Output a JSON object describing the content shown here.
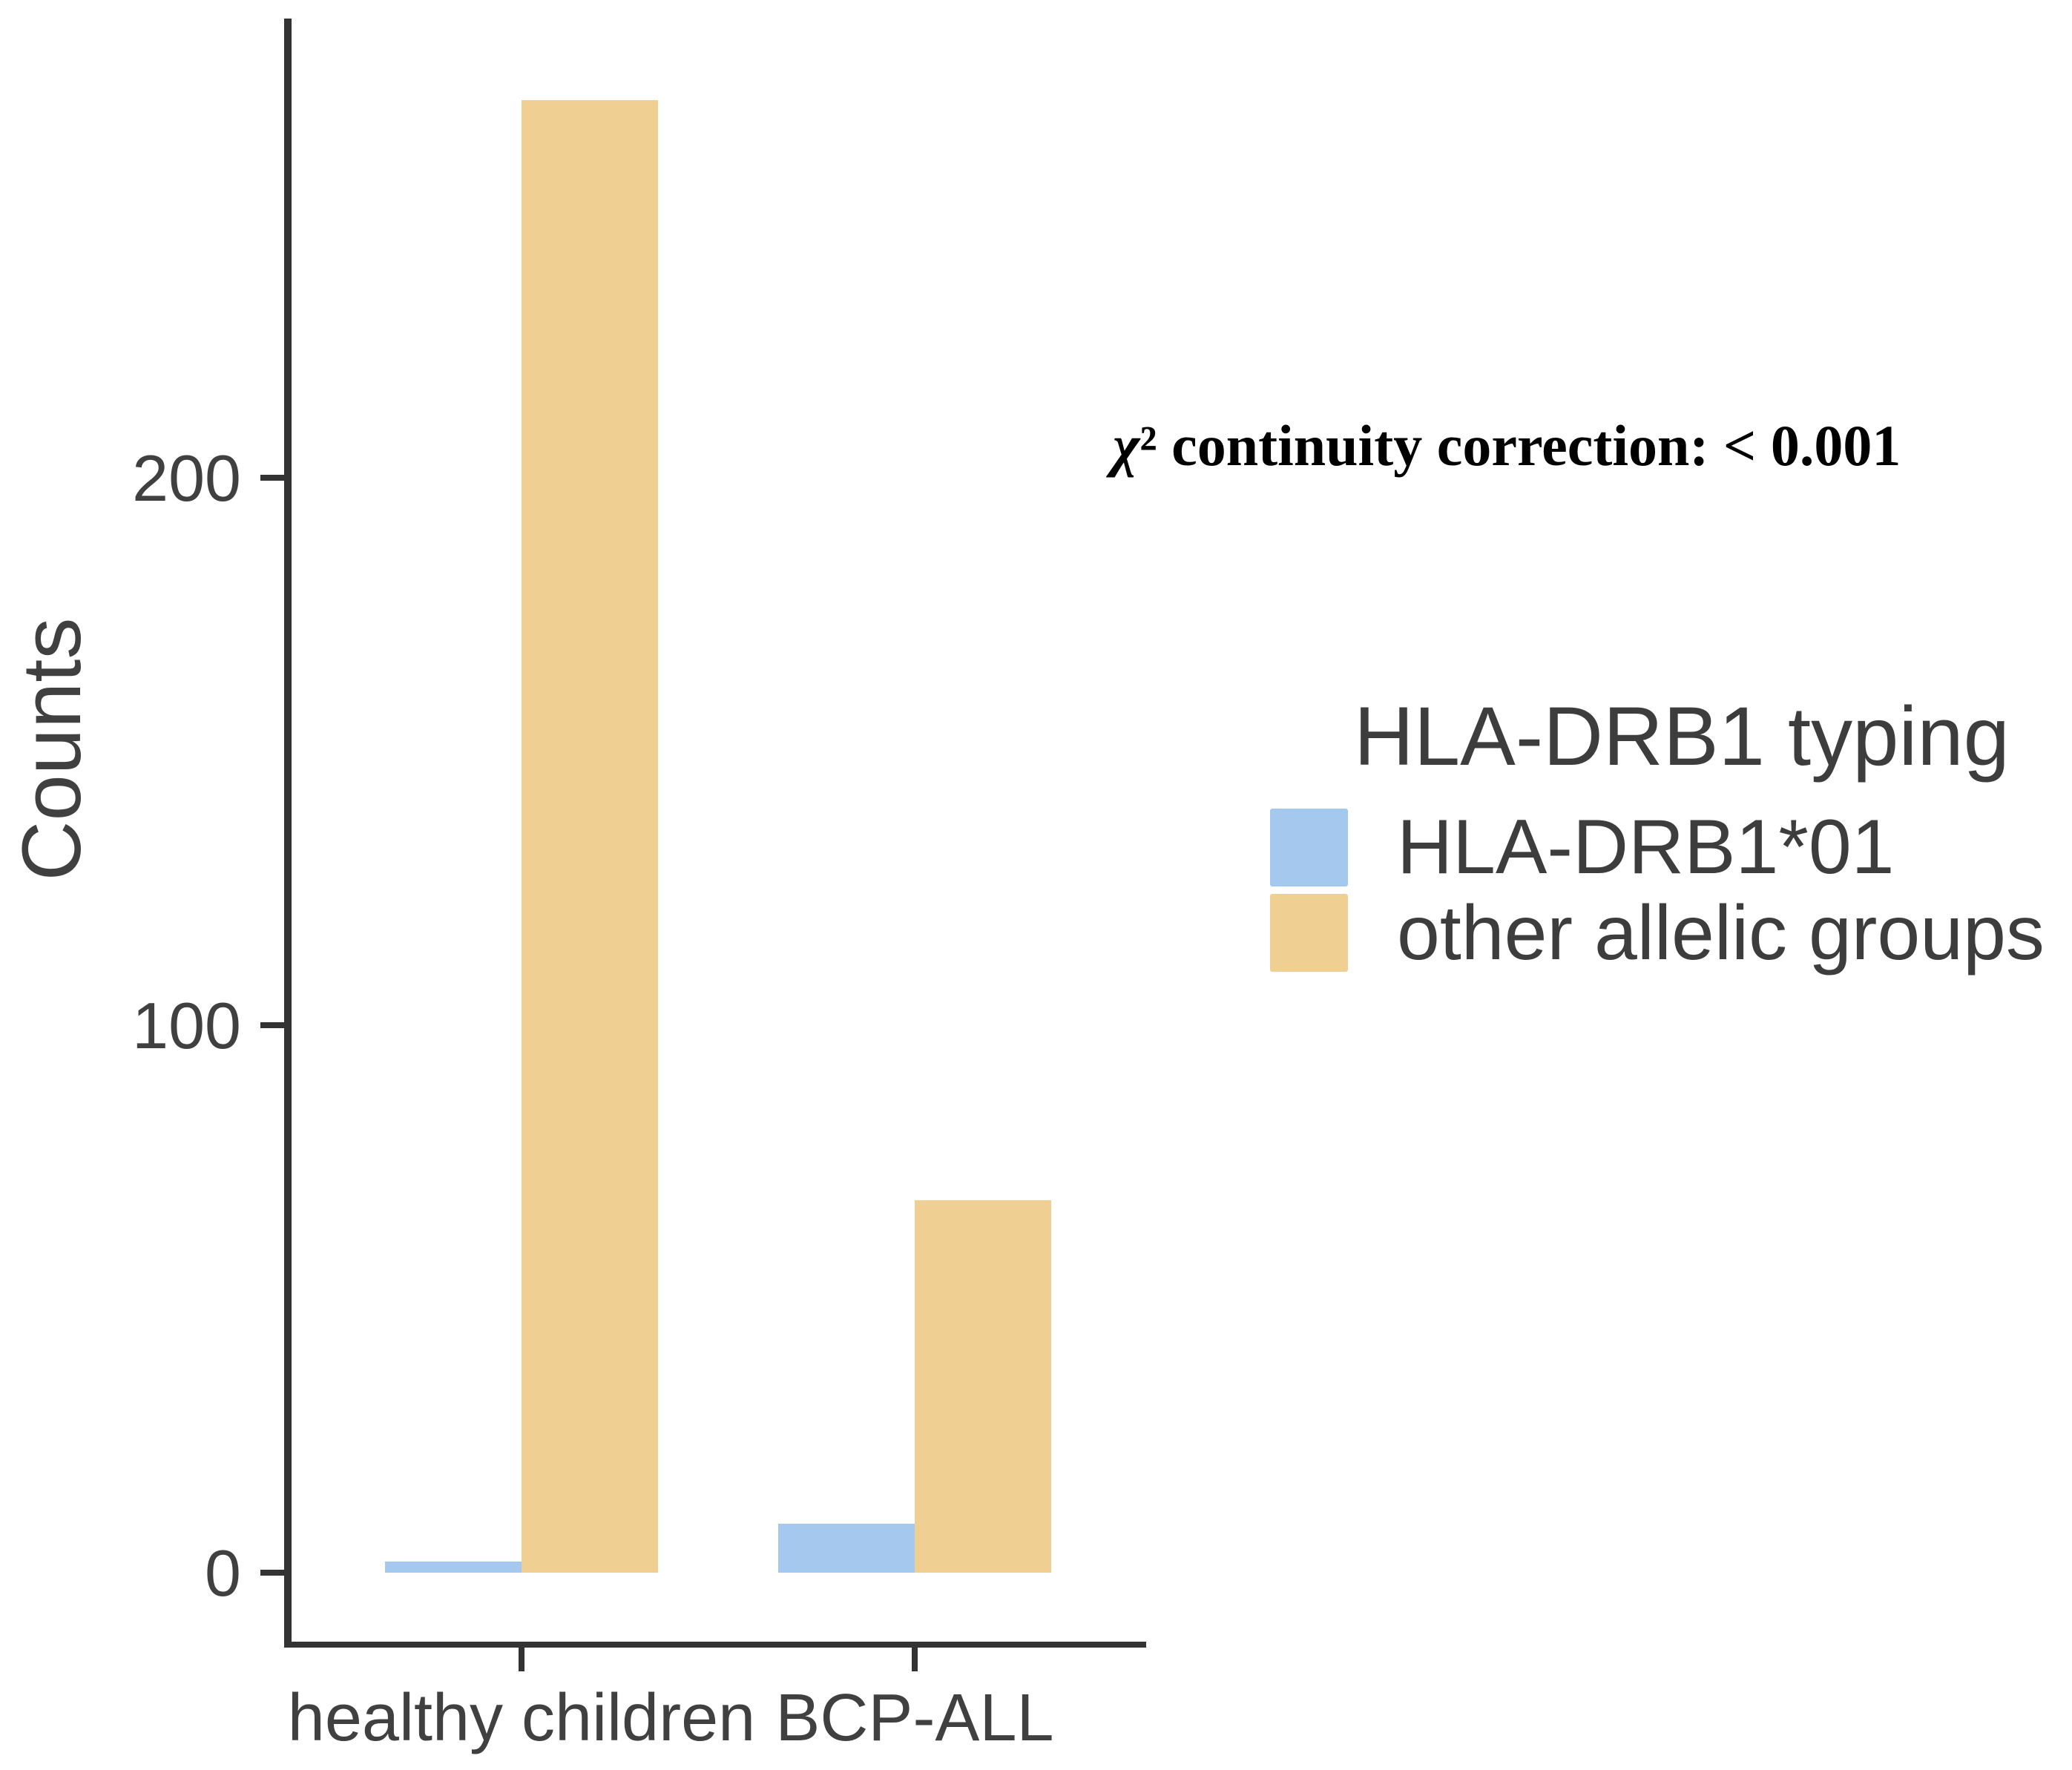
{
  "chart_data": {
    "type": "bar",
    "bar_layout": "dodged",
    "title": "",
    "categories": [
      "healthy children",
      "BCP-ALL"
    ],
    "series": [
      {
        "name": "HLA-DRB1*01",
        "color": "#a5c8ef",
        "values": [
          2,
          9
        ]
      },
      {
        "name": "other allelic groups",
        "color": "#f0cf92",
        "values": [
          269,
          68
        ]
      }
    ],
    "xlabel": "",
    "ylabel": "Counts",
    "y_ticks": [
      0,
      100,
      200
    ],
    "y_tick_labels": [
      "0",
      "100",
      "200"
    ],
    "ylim": [
      0,
      280
    ],
    "grid": false,
    "legend_title": "HLA-DRB1 typing",
    "legend_position": "right-center",
    "annotation": "χ² continuity correction: < 0.001",
    "axis_color": "#333333",
    "text_color": "#404040",
    "background_color": "#ffffff"
  }
}
